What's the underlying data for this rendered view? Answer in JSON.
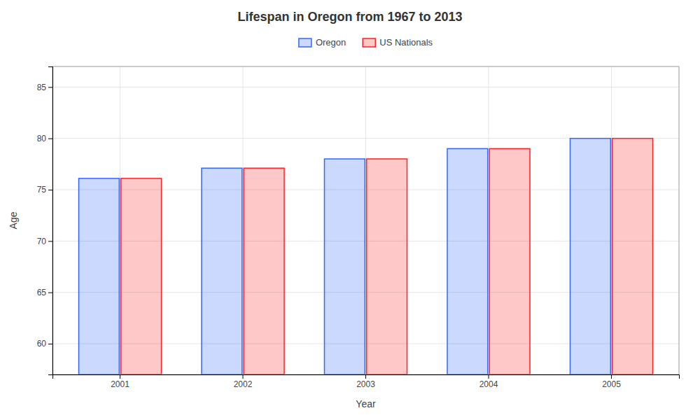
{
  "chart_data": {
    "type": "bar",
    "title": "Lifespan in Oregon from 1967 to 2013",
    "xlabel": "Year",
    "ylabel": "Age",
    "categories": [
      "2001",
      "2002",
      "2003",
      "2004",
      "2005"
    ],
    "series": [
      {
        "name": "Oregon",
        "color": "#3366ff",
        "values": [
          76.1,
          77.1,
          78.0,
          79.0,
          80.0
        ]
      },
      {
        "name": "US Nationals",
        "color": "#ff2222",
        "values": [
          76.1,
          77.1,
          78.0,
          79.0,
          80.0
        ]
      }
    ],
    "ylim": [
      57,
      87
    ],
    "yticks": [
      60,
      65,
      70,
      75,
      80,
      85
    ],
    "grid": true,
    "legend": "top"
  }
}
